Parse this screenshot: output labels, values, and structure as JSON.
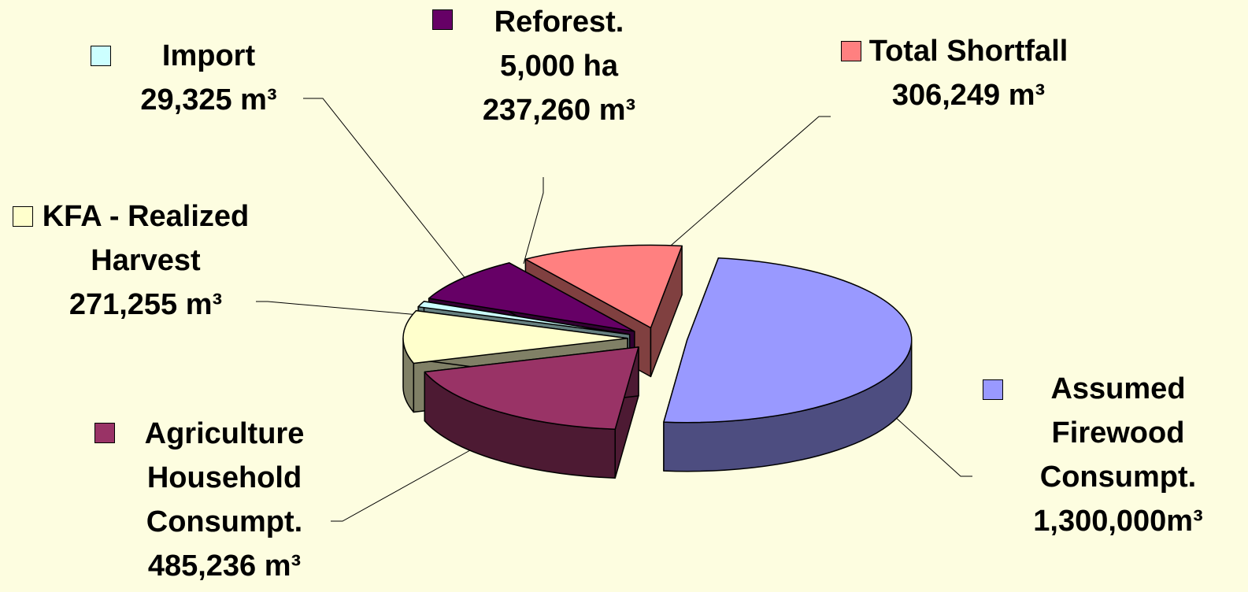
{
  "chart_data": {
    "type": "pie",
    "categories": [
      "Assumed Firewood Consumpt.",
      "Agriculture Household Consumpt.",
      "KFA - Realized Harvest",
      "Import",
      "Reforest. 5,000 ha",
      "Total Shortfall"
    ],
    "values": [
      1300000,
      485236,
      271255,
      29325,
      237260,
      306249
    ],
    "value_labels": [
      "1,300,000m³",
      "485,236 m³",
      "271,255 m³",
      "29,325 m³",
      "237,260 m³",
      "306,249 m³"
    ],
    "colors": [
      "#9999ff",
      "#993366",
      "#ffffcc",
      "#ccffff",
      "#660066",
      "#ff8080"
    ]
  }
}
